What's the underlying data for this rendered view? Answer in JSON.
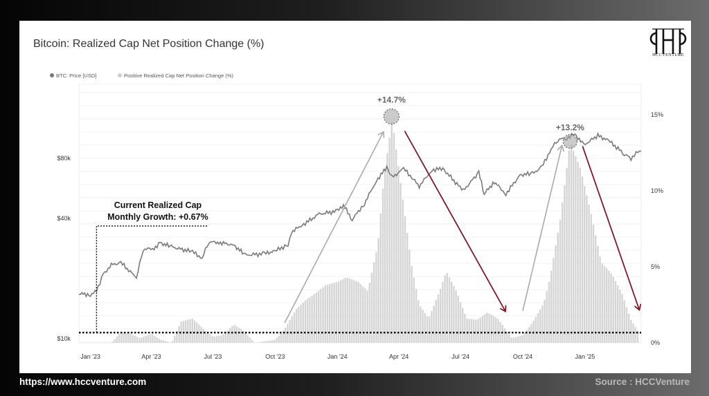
{
  "footer": {
    "url": "https://www.hccventure.com",
    "source": "Source : HCCVenture"
  },
  "logo": {
    "text": "HCCVENTURE",
    "icon": "hcc-monogram-logo"
  },
  "colors": {
    "price_line": "#7a7a7a",
    "bars": "#d5d5d5",
    "dark_arrow": "#7a1a2b",
    "gray_arrow": "#aaaaaa",
    "threshold": "#111111"
  },
  "chart_data": {
    "type": "bar",
    "title": "Bitcoin: Realized Cap Net Position Change (%)",
    "legend": {
      "placement": "top-left",
      "entries": [
        "BTC: Price [USD]",
        "Positive Realized Cap Net Position Change (%)"
      ]
    },
    "x_tick_labels": [
      "Jan '23",
      "Apr '23",
      "Jul '23",
      "Oct '23",
      "Jan '24",
      "Apr '24",
      "Jul '24",
      "Oct '24",
      "Jan '25"
    ],
    "y_left": {
      "scale": "log",
      "tick_labels": [
        "$10k",
        "$40k",
        "$80k"
      ]
    },
    "y_right": {
      "range": [
        0,
        17
      ],
      "tick_labels": [
        "0%",
        "5%",
        "10%",
        "15%"
      ]
    },
    "grid": true,
    "series": [
      {
        "name": "Positive Realized Cap Net Position Change (%)",
        "type": "bar",
        "points": [
          [
            "2023-01-01",
            0
          ],
          [
            "2023-02-01",
            0
          ],
          [
            "2023-02-15",
            0.7
          ],
          [
            "2023-03-01",
            0.6
          ],
          [
            "2023-03-15",
            0.3
          ],
          [
            "2023-04-01",
            0.6
          ],
          [
            "2023-04-15",
            0.2
          ],
          [
            "2023-05-01",
            0
          ],
          [
            "2023-05-15",
            1.4
          ],
          [
            "2023-06-01",
            1.6
          ],
          [
            "2023-06-15",
            1.0
          ],
          [
            "2023-07-01",
            0.4
          ],
          [
            "2023-07-15",
            0.5
          ],
          [
            "2023-08-01",
            1.2
          ],
          [
            "2023-08-15",
            0.8
          ],
          [
            "2023-09-01",
            0
          ],
          [
            "2023-10-01",
            0.2
          ],
          [
            "2023-10-15",
            0.9
          ],
          [
            "2023-11-01",
            2.2
          ],
          [
            "2023-11-15",
            2.8
          ],
          [
            "2023-12-01",
            3.3
          ],
          [
            "2023-12-15",
            3.8
          ],
          [
            "2024-01-01",
            4.0
          ],
          [
            "2024-01-15",
            4.3
          ],
          [
            "2024-02-01",
            4.0
          ],
          [
            "2024-02-15",
            3.4
          ],
          [
            "2024-03-01",
            6.5
          ],
          [
            "2024-03-10",
            11
          ],
          [
            "2024-03-22",
            14.7
          ],
          [
            "2024-04-05",
            10
          ],
          [
            "2024-04-20",
            5
          ],
          [
            "2024-05-01",
            2.5
          ],
          [
            "2024-05-15",
            1.6
          ],
          [
            "2024-06-01",
            3.5
          ],
          [
            "2024-06-10",
            4.7
          ],
          [
            "2024-06-25",
            3.4
          ],
          [
            "2024-07-10",
            1.6
          ],
          [
            "2024-07-25",
            1.5
          ],
          [
            "2024-08-10",
            2.0
          ],
          [
            "2024-08-25",
            1.6
          ],
          [
            "2024-09-15",
            0.3
          ],
          [
            "2024-10-01",
            0.5
          ],
          [
            "2024-10-15",
            1.3
          ],
          [
            "2024-11-01",
            2.6
          ],
          [
            "2024-11-10",
            4.2
          ],
          [
            "2024-11-25",
            8
          ],
          [
            "2024-12-10",
            13.2
          ],
          [
            "2024-12-25",
            11.5
          ],
          [
            "2025-01-10",
            8.5
          ],
          [
            "2025-01-25",
            5.3
          ],
          [
            "2025-02-10",
            4.5
          ],
          [
            "2025-02-25",
            3.2
          ],
          [
            "2025-03-10",
            1.5
          ],
          [
            "2025-03-20",
            0.8
          ]
        ]
      },
      {
        "name": "BTC: Price [USD]",
        "type": "line",
        "points": [
          [
            "2022-12-15",
            16800
          ],
          [
            "2023-01-01",
            16600
          ],
          [
            "2023-01-10",
            17400
          ],
          [
            "2023-01-20",
            21000
          ],
          [
            "2023-02-01",
            23400
          ],
          [
            "2023-02-15",
            24000
          ],
          [
            "2023-03-10",
            20200
          ],
          [
            "2023-03-20",
            28000
          ],
          [
            "2023-04-05",
            28300
          ],
          [
            "2023-04-14",
            30200
          ],
          [
            "2023-05-01",
            28800
          ],
          [
            "2023-06-01",
            27200
          ],
          [
            "2023-06-15",
            25300
          ],
          [
            "2023-06-25",
            30500
          ],
          [
            "2023-07-10",
            30300
          ],
          [
            "2023-08-01",
            29400
          ],
          [
            "2023-08-18",
            26200
          ],
          [
            "2023-09-15",
            26600
          ],
          [
            "2023-10-01",
            27500
          ],
          [
            "2023-10-20",
            29500
          ],
          [
            "2023-10-25",
            34200
          ],
          [
            "2023-11-10",
            37000
          ],
          [
            "2023-12-05",
            42000
          ],
          [
            "2024-01-01",
            43500
          ],
          [
            "2024-01-10",
            46500
          ],
          [
            "2024-01-23",
            39500
          ],
          [
            "2024-02-10",
            47500
          ],
          [
            "2024-02-28",
            62000
          ],
          [
            "2024-03-14",
            72000
          ],
          [
            "2024-03-22",
            64000
          ],
          [
            "2024-04-08",
            71000
          ],
          [
            "2024-04-20",
            64000
          ],
          [
            "2024-05-01",
            58000
          ],
          [
            "2024-05-20",
            70000
          ],
          [
            "2024-06-05",
            71000
          ],
          [
            "2024-07-05",
            55000
          ],
          [
            "2024-07-28",
            68000
          ],
          [
            "2024-08-05",
            53000
          ],
          [
            "2024-08-20",
            61000
          ],
          [
            "2024-09-06",
            53000
          ],
          [
            "2024-09-27",
            66000
          ],
          [
            "2024-10-15",
            67000
          ],
          [
            "2024-10-29",
            72000
          ],
          [
            "2024-11-12",
            89000
          ],
          [
            "2024-11-22",
            99000
          ],
          [
            "2024-12-05",
            101000
          ],
          [
            "2024-12-17",
            106000
          ],
          [
            "2024-12-30",
            93000
          ],
          [
            "2025-01-20",
            104000
          ],
          [
            "2025-02-05",
            98000
          ],
          [
            "2025-02-28",
            84000
          ],
          [
            "2025-03-10",
            80000
          ],
          [
            "2025-03-20",
            86000
          ],
          [
            "2025-03-25",
            87000
          ]
        ]
      }
    ],
    "annotations": [
      {
        "text": "+14.7%",
        "date": "2024-03-22",
        "value": 14.7
      },
      {
        "text": "+13.2%",
        "date": "2024-12-10",
        "value": 13.2
      },
      {
        "text": "Current Realized Cap",
        "date": "2023-01-10"
      },
      {
        "text": "Monthly Growth: +0.67%",
        "date": "2023-01-10",
        "value": 0.67
      }
    ]
  }
}
